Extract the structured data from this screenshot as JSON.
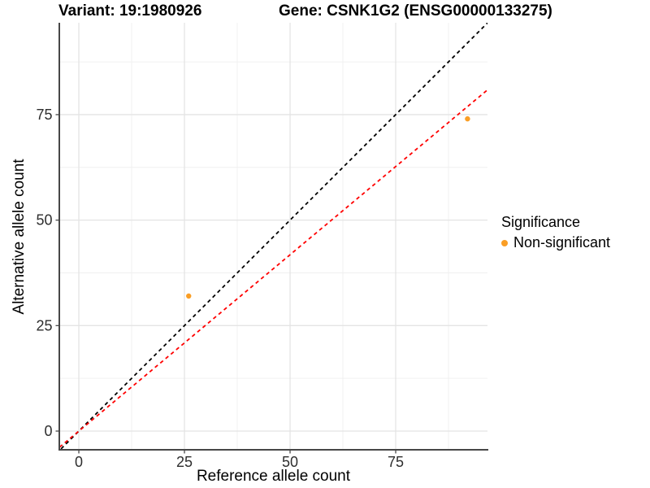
{
  "header": {
    "variant_title": "Variant: 19:1980926",
    "gene_title": "Gene: CSNK1G2 (ENSG00000133275)"
  },
  "legend": {
    "title": "Significance",
    "items": [
      {
        "label": "Non-significant",
        "color": "#FA9E25",
        "marker": "circle-icon"
      }
    ]
  },
  "chart_data": {
    "type": "scatter",
    "title": "",
    "xlabel": "Reference allele count",
    "ylabel": "Alternative allele count",
    "xlim": [
      -4.62,
      96.73
    ],
    "ylim": [
      -4.43,
      96.77
    ],
    "x_ticks": [
      0,
      25,
      50,
      75
    ],
    "y_ticks": [
      0,
      25,
      50,
      75
    ],
    "grid": "major and minor light-gray gridlines on white panel",
    "legend_position": "right",
    "series": [
      {
        "name": "Non-significant",
        "color": "#FA9E25",
        "points": [
          {
            "x": 26,
            "y": 32
          },
          {
            "x": 92,
            "y": 74
          }
        ]
      }
    ],
    "ref_lines": [
      {
        "name": "identity-line",
        "slope": 1,
        "intercept": 0,
        "color": "#000000",
        "dash": "dashed"
      },
      {
        "name": "fit-line",
        "slope": 0.836,
        "intercept": 0,
        "color": "#FF0000",
        "dash": "dashed"
      }
    ],
    "colors": {
      "point": "#FA9E25",
      "axis_line": "#474747",
      "major_grid": "#E4E4E4",
      "minor_grid": "#F0F0F0"
    }
  }
}
